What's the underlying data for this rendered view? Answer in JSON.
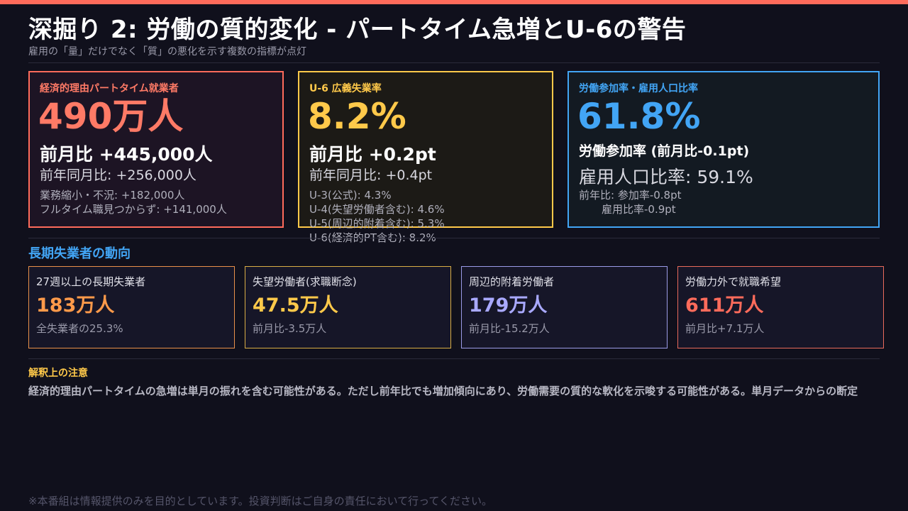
{
  "header": {
    "title": "深掘り 2: 労働の質的変化 - パートタイム急増とU-6の警告",
    "subtitle": "雇用の「量」だけでなく「質」の悪化を示す複数の指標が点灯"
  },
  "cards": {
    "part_time": {
      "label": "経済的理由パートタイム就業者",
      "big": "490万人",
      "line1": "前月比 +445,000人",
      "line2": "前年同月比: +256,000人",
      "details": [
        "業務縮小・不況: +182,000人",
        "フルタイム職見つからず: +141,000人"
      ]
    },
    "u6": {
      "label": "U-6 広義失業率",
      "big": "8.2%",
      "line1": "前月比 +0.2pt",
      "line2": "前年同月比: +0.4pt",
      "details": [
        "U-3(公式): 4.3%",
        "U-4(失望労働者含む): 4.6%",
        "U-5(周辺的附着含む): 5.3%",
        "U-6(経済的PT含む): 8.2%"
      ]
    },
    "labor_force": {
      "label": "労働参加率・雇用人口比率",
      "big": "61.8%",
      "line1": "労働参加率 (前月比-0.1pt)",
      "line2": "雇用人口比率: 59.1%",
      "details": [
        "前年比: 参加率-0.8pt",
        "雇用比率-0.9pt"
      ]
    }
  },
  "long_term": {
    "title": "長期失業者の動向",
    "items": [
      {
        "label": "27週以上の長期失業者",
        "value": "183万人",
        "note": "全失業者の25.3%"
      },
      {
        "label": "失望労働者(求職断念)",
        "value": "47.5万人",
        "note": "前月比-3.5万人"
      },
      {
        "label": "周辺的附着労働者",
        "value": "179万人",
        "note": "前月比-15.2万人"
      },
      {
        "label": "労働力外で就職希望",
        "value": "611万人",
        "note": "前月比+7.1万人"
      }
    ]
  },
  "caution": {
    "title": "解釈上の注意",
    "text": "経済的理由パートタイムの急増は単月の振れを含む可能性がある。ただし前年比でも増加傾向にあり、労働需要の質的な軟化を示唆する可能性がある。単月データからの断定"
  },
  "footer": "※本番組は情報提供のみを目的としています。投資判断はご自身の責任において行ってください。",
  "colors": {
    "accent_red": "#ff6b5b",
    "accent_yellow": "#ffc94a",
    "accent_blue": "#42a5f5",
    "accent_orange": "#ff9a4a",
    "accent_purple": "#a9a9ff",
    "background": "#10101c"
  }
}
